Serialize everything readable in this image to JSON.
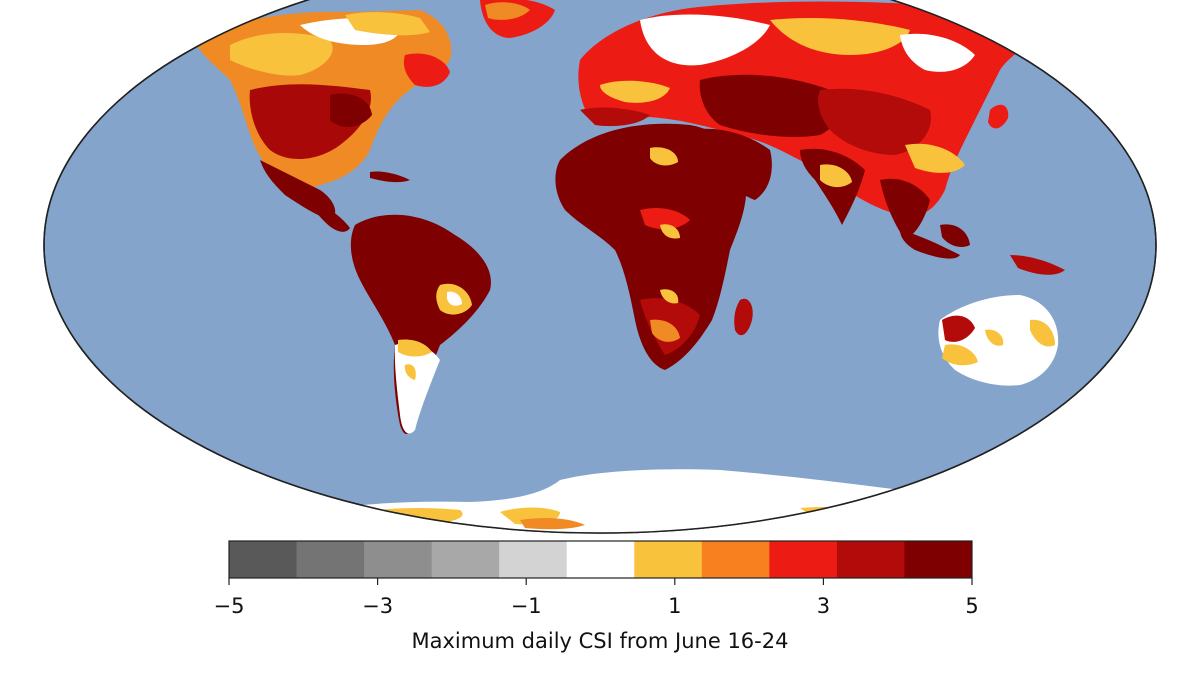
{
  "colorbar": {
    "label": "Maximum daily CSI from June 16-24",
    "min": -5,
    "max": 5,
    "colors": [
      "#595959",
      "#747474",
      "#8e8e8e",
      "#a8a8a8",
      "#d3d3d3",
      "#ffffff",
      "#f9c23c",
      "#f8801f",
      "#ec1c14",
      "#b30a0a",
      "#7e0000"
    ],
    "ticks": [
      {
        "value": -5,
        "label": "−5"
      },
      {
        "value": -3,
        "label": "−3"
      },
      {
        "value": -1,
        "label": "−1"
      },
      {
        "value": 1,
        "label": "1"
      },
      {
        "value": 3,
        "label": "3"
      },
      {
        "value": 5,
        "label": "5"
      }
    ]
  },
  "map": {
    "ocean_color": "#84a4cc",
    "outline_color": "#222222"
  }
}
